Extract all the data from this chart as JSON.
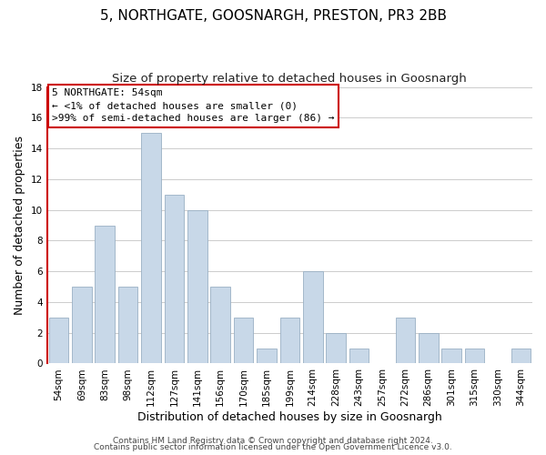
{
  "title": "5, NORTHGATE, GOOSNARGH, PRESTON, PR3 2BB",
  "subtitle": "Size of property relative to detached houses in Goosnargh",
  "xlabel": "Distribution of detached houses by size in Goosnargh",
  "ylabel": "Number of detached properties",
  "categories": [
    "54sqm",
    "69sqm",
    "83sqm",
    "98sqm",
    "112sqm",
    "127sqm",
    "141sqm",
    "156sqm",
    "170sqm",
    "185sqm",
    "199sqm",
    "214sqm",
    "228sqm",
    "243sqm",
    "257sqm",
    "272sqm",
    "286sqm",
    "301sqm",
    "315sqm",
    "330sqm",
    "344sqm"
  ],
  "values": [
    3,
    5,
    9,
    5,
    15,
    11,
    10,
    5,
    3,
    1,
    3,
    6,
    2,
    1,
    0,
    3,
    2,
    1,
    1,
    0,
    1
  ],
  "bar_color": "#c8d8e8",
  "bar_edge_color": "#9ab0c4",
  "annotation_title": "5 NORTHGATE: 54sqm",
  "annotation_line1": "← <1% of detached houses are smaller (0)",
  "annotation_line2": ">99% of semi-detached houses are larger (86) →",
  "annotation_box_color": "#ffffff",
  "annotation_box_edge": "#cc0000",
  "left_spine_color": "#cc0000",
  "ylim": [
    0,
    18
  ],
  "yticks": [
    0,
    2,
    4,
    6,
    8,
    10,
    12,
    14,
    16,
    18
  ],
  "footer1": "Contains HM Land Registry data © Crown copyright and database right 2024.",
  "footer2": "Contains public sector information licensed under the Open Government Licence v3.0.",
  "bg_color": "#ffffff",
  "grid_color": "#cccccc",
  "title_fontsize": 11,
  "subtitle_fontsize": 9.5,
  "axis_label_fontsize": 9,
  "tick_fontsize": 7.5,
  "annotation_fontsize": 8,
  "footer_fontsize": 6.5
}
